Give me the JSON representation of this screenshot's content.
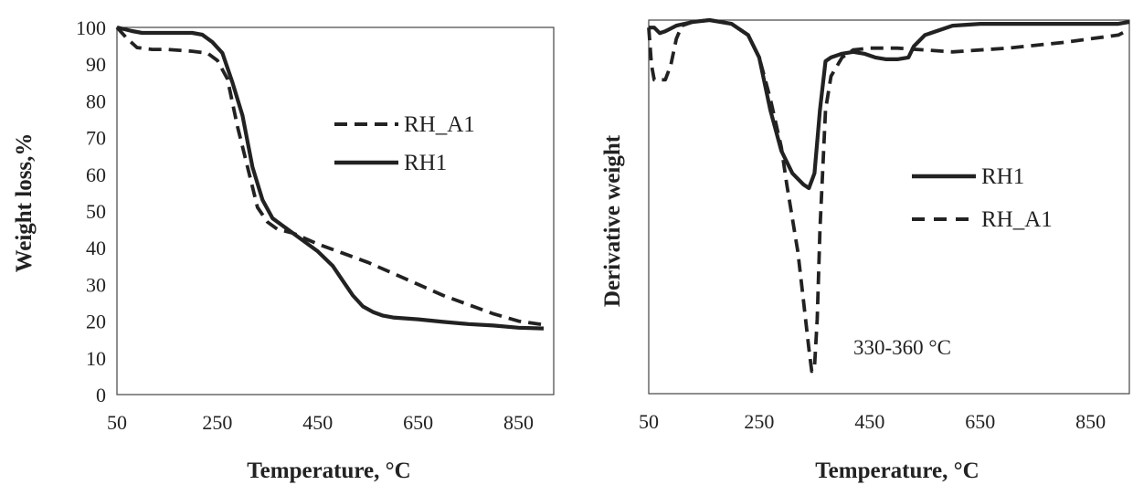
{
  "chart_data": [
    {
      "type": "line",
      "title": "",
      "xlabel": "Temperature, °C",
      "ylabel": "Weight loss,%",
      "xlim": [
        50,
        920
      ],
      "ylim": [
        0,
        100
      ],
      "xticks": [
        50,
        250,
        450,
        650,
        850
      ],
      "yticks": [
        0,
        10,
        20,
        30,
        40,
        50,
        60,
        70,
        80,
        90,
        100
      ],
      "grid": false,
      "legend_position": "center-right",
      "legend": [
        "RH_A1",
        "RH1"
      ],
      "series": [
        {
          "name": "RH_A1",
          "style": "dashed",
          "x": [
            50,
            70,
            90,
            120,
            150,
            200,
            230,
            250,
            270,
            290,
            310,
            330,
            350,
            370,
            400,
            450,
            500,
            550,
            600,
            650,
            700,
            750,
            800,
            850,
            900
          ],
          "y": [
            100,
            97,
            94.5,
            94,
            94,
            93.5,
            93,
            91,
            86,
            73,
            62,
            51,
            47,
            45,
            44,
            41,
            38.5,
            36,
            33,
            30,
            27,
            24.5,
            22,
            20,
            19
          ]
        },
        {
          "name": "RH1",
          "style": "solid",
          "x": [
            50,
            80,
            100,
            150,
            200,
            220,
            240,
            260,
            280,
            300,
            320,
            340,
            360,
            380,
            400,
            450,
            480,
            500,
            520,
            540,
            560,
            580,
            600,
            650,
            700,
            750,
            800,
            850,
            900
          ],
          "y": [
            100,
            99,
            98.5,
            98.5,
            98.5,
            98,
            96,
            93,
            85,
            76,
            62,
            53,
            48,
            46,
            44,
            39,
            35,
            31,
            27,
            24,
            22.5,
            21.5,
            21,
            20.5,
            19.8,
            19.2,
            18.8,
            18.2,
            18
          ]
        }
      ]
    },
    {
      "type": "line",
      "title": "",
      "xlabel": "Temperature, °C",
      "ylabel": "Derivative weight",
      "xlim": [
        50,
        920
      ],
      "ylim": [
        0,
        100
      ],
      "xticks": [
        50,
        250,
        450,
        650,
        850
      ],
      "yticks": [],
      "grid": false,
      "legend_position": "center-right",
      "legend": [
        "RH1",
        "RH_A1"
      ],
      "annotation": "330-360 °C",
      "series": [
        {
          "name": "RH1",
          "style": "solid",
          "x": [
            50,
            60,
            70,
            80,
            100,
            130,
            160,
            200,
            230,
            250,
            270,
            290,
            310,
            330,
            340,
            350,
            360,
            370,
            380,
            400,
            420,
            440,
            460,
            480,
            500,
            520,
            530,
            550,
            600,
            650,
            700,
            800,
            900,
            920
          ],
          "y": [
            98,
            98,
            96.5,
            97,
            98.5,
            99.5,
            100,
            99,
            96,
            90,
            76,
            65,
            59,
            56,
            55,
            59,
            76,
            89,
            90,
            91,
            91.5,
            91,
            90,
            89.5,
            89.5,
            90,
            93,
            96,
            98.5,
            99,
            99,
            99,
            99,
            99.5
          ]
        },
        {
          "name": "RH_A1",
          "style": "dashed",
          "x": [
            50,
            55,
            60,
            70,
            80,
            90,
            100,
            110,
            130,
            160,
            200,
            230,
            250,
            270,
            290,
            300,
            320,
            330,
            340,
            345,
            350,
            355,
            360,
            370,
            380,
            400,
            420,
            450,
            500,
            550,
            600,
            650,
            700,
            800,
            900,
            920
          ],
          "y": [
            98,
            88,
            84,
            84,
            84,
            88,
            95,
            98.5,
            99.5,
            100,
            99,
            96,
            90,
            79,
            66,
            56,
            38,
            25,
            12,
            6,
            7,
            20,
            44,
            76,
            85,
            90,
            92,
            92.5,
            92.5,
            92,
            91.5,
            92,
            92.5,
            94,
            96,
            97.5
          ]
        }
      ]
    }
  ]
}
